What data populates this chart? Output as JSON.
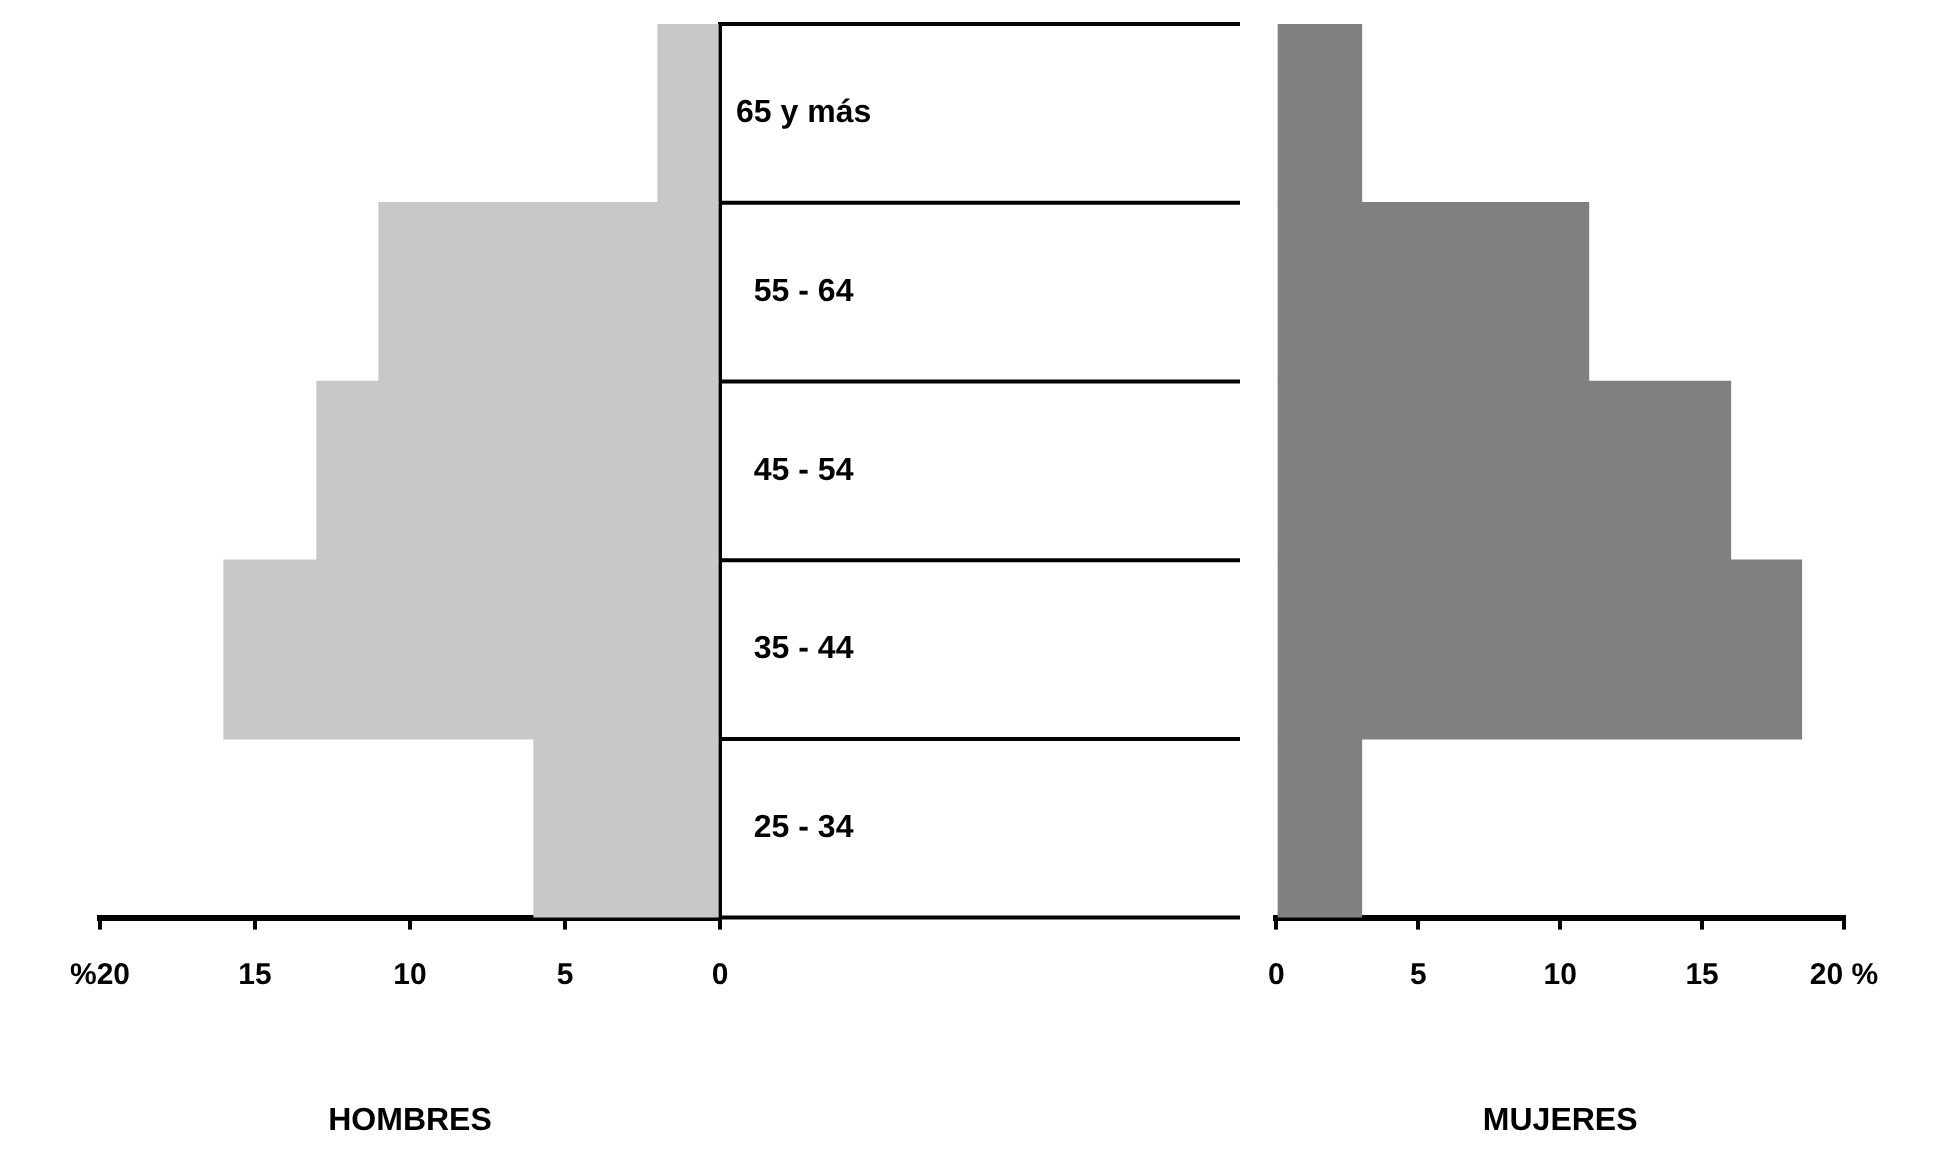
{
  "chart_data": [
    {
      "type": "bar",
      "orientation": "horizontal",
      "categories": [
        "65 y más",
        "55 - 64",
        "45 - 54",
        "35 - 44",
        "25 - 34"
      ],
      "values": [
        2,
        11,
        13,
        16,
        6
      ],
      "color": "#c8c8c8",
      "xlim": [
        20,
        0
      ],
      "xticks": [
        {
          "value": 20,
          "label": "%20"
        },
        15,
        10,
        5,
        0
      ],
      "xlabel": "HOMBRES",
      "grid": false,
      "legend": false
    },
    {
      "type": "bar",
      "orientation": "horizontal",
      "categories": [
        null,
        null,
        null,
        null,
        null
      ],
      "values": [
        3,
        11,
        16,
        18.5,
        3
      ],
      "color": "#808080",
      "xlim": [
        0,
        20
      ],
      "xticks": [
        0,
        5,
        10,
        15,
        {
          "value": 20,
          "label": "20 %"
        }
      ],
      "xlabel": "MUJERES",
      "grid": false,
      "legend": false,
      "tick_labels": "x"
    }
  ]
}
